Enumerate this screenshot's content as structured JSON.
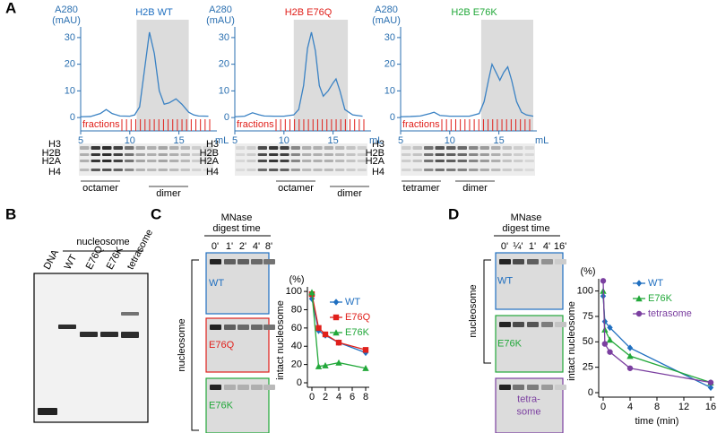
{
  "panel_labels": [
    "A",
    "B",
    "C",
    "D"
  ],
  "chart_data": [
    {
      "type": "line",
      "title": "H2B WT",
      "title_color": "#1f6fc0",
      "axis_color": "#2a6fb0",
      "ylabel": [
        "A280",
        "(mAU)"
      ],
      "xlabel": "mL",
      "fractions_label": "fractions",
      "x": [
        5,
        6,
        7,
        7.6,
        8.2,
        9,
        10,
        10.5,
        11,
        11.5,
        12,
        12.5,
        13,
        13.5,
        14,
        14.7,
        15.3,
        16,
        16.5,
        17,
        18
      ],
      "values": [
        0.3,
        0.4,
        1.5,
        3,
        1.5,
        0.6,
        0.5,
        1,
        4,
        18,
        32,
        24,
        10,
        5,
        5.5,
        7,
        5,
        2,
        1,
        0.6,
        0.5
      ],
      "color": "#3a82c4",
      "xlim": [
        5,
        18.5
      ],
      "ylim": [
        -5,
        34
      ],
      "xticks": [
        5,
        10,
        15
      ],
      "yticks": [
        0,
        10,
        20,
        30
      ],
      "shaded_xrange": [
        10.7,
        16
      ]
    },
    {
      "type": "line",
      "title": "H2B E76Q",
      "title_color": "#e0201b",
      "axis_color": "#2a6fb0",
      "ylabel": [
        "A280",
        "(mAU)"
      ],
      "xlabel": "mL",
      "fractions_label": "fractions",
      "x": [
        5,
        6,
        6.8,
        7.5,
        8,
        9,
        10,
        11,
        11.5,
        12,
        12.4,
        12.8,
        13.2,
        13.6,
        14,
        14.5,
        15,
        15.3,
        15.7,
        16.2,
        17,
        18
      ],
      "values": [
        0.3,
        0.5,
        1.8,
        1,
        0.6,
        0.5,
        0.5,
        1,
        3,
        12,
        26,
        32,
        25,
        12,
        8,
        10,
        13,
        14.5,
        10,
        3,
        1,
        0.5
      ],
      "color": "#3a82c4",
      "xlim": [
        5,
        18.5
      ],
      "ylim": [
        -5,
        34
      ],
      "xticks": [
        5,
        10,
        15
      ],
      "yticks": [
        0,
        10,
        20,
        30
      ],
      "shaded_xrange": [
        11,
        16.5
      ]
    },
    {
      "type": "line",
      "title": "H2B E76K",
      "title_color": "#22a83a",
      "axis_color": "#2a6fb0",
      "ylabel": [
        "A280",
        "(mAU)"
      ],
      "xlabel": "mL",
      "fractions_label": "fractions",
      "x": [
        5,
        6,
        7,
        8,
        8.4,
        9,
        10,
        11,
        12,
        13,
        13.5,
        14,
        14.3,
        14.7,
        15.1,
        15.5,
        15.9,
        16.3,
        16.8,
        17.3,
        17.8,
        18.5
      ],
      "values": [
        0.3,
        0.4,
        0.6,
        1.5,
        2,
        0.8,
        0.5,
        0.5,
        0.5,
        1.5,
        6,
        15,
        20,
        17,
        14,
        17,
        19,
        14,
        6,
        2,
        1,
        0.5
      ],
      "color": "#3a82c4",
      "xlim": [
        5,
        18.5
      ],
      "ylim": [
        -5,
        34
      ],
      "xticks": [
        5,
        10,
        15
      ],
      "yticks": [
        0,
        10,
        20,
        30
      ],
      "shaded_xrange": [
        13.2,
        18.5
      ]
    },
    {
      "type": "line",
      "ylabel": "intact nucleosome",
      "ylabel_unit": "(%)",
      "x": [
        0,
        1,
        2,
        4,
        8
      ],
      "xlim": [
        0,
        8
      ],
      "ylim": [
        0,
        105
      ],
      "xticks": [
        0,
        2,
        4,
        6,
        8
      ],
      "yticks": [
        0,
        20,
        40,
        60,
        80,
        100
      ],
      "legend": "upper right",
      "series": [
        {
          "name": "WT",
          "color": "#1f6fc0",
          "marker": "diamond",
          "values": [
            92,
            57,
            52,
            44,
            33
          ]
        },
        {
          "name": "E76Q",
          "color": "#e0201b",
          "marker": "square",
          "values": [
            97,
            60,
            53,
            44,
            36
          ]
        },
        {
          "name": "E76K",
          "color": "#22a83a",
          "marker": "triangle",
          "values": [
            99,
            18,
            19,
            22,
            16
          ]
        }
      ]
    },
    {
      "type": "line",
      "ylabel": "intact nucleosome",
      "ylabel_unit": "(%)",
      "xlabel": "time (min)",
      "x": [
        0,
        0.25,
        1,
        4,
        16
      ],
      "xlim": [
        0,
        16
      ],
      "ylim": [
        0,
        112
      ],
      "xticks": [
        0,
        4,
        8,
        12,
        16
      ],
      "yticks": [
        0,
        25,
        50,
        75,
        100
      ],
      "legend": "upper right",
      "series": [
        {
          "name": "WT",
          "color": "#1f6fc0",
          "marker": "diamond",
          "values": [
            95,
            70,
            64,
            44,
            5
          ]
        },
        {
          "name": "E76K",
          "color": "#22a83a",
          "marker": "triangle",
          "values": [
            100,
            62,
            52,
            36,
            10
          ]
        },
        {
          "name": "tetrasome",
          "color": "#7b3fa0",
          "marker": "circle",
          "values": [
            110,
            48,
            40,
            24,
            10
          ]
        }
      ]
    }
  ],
  "gels_a": [
    {
      "proteins": [
        "H3",
        "H2B",
        "H2A",
        "H4"
      ],
      "fractions": [
        "octamer",
        "dimer"
      ]
    },
    {
      "proteins": [
        "H3",
        "H2B",
        "H2A",
        "H4"
      ],
      "fractions": [
        "octamer",
        "dimer"
      ]
    },
    {
      "proteins": [
        "H3",
        "H2B",
        "H2A",
        "H4"
      ],
      "fractions": [
        "tetramer",
        "dimer"
      ]
    }
  ],
  "gel_b": {
    "group": "nucleosome",
    "lanes": [
      "DNA",
      "WT",
      "E76Q",
      "E76K",
      "tetrasome"
    ]
  },
  "gel_c": {
    "header": [
      "MNase",
      "digest time"
    ],
    "times": [
      "0'",
      "1'",
      "2'",
      "4'",
      "8'"
    ],
    "group": "nucleosome",
    "rows": [
      {
        "label": [
          "WT"
        ],
        "color": "#1f6fc0"
      },
      {
        "label": [
          "E76Q"
        ],
        "color": "#e0201b"
      },
      {
        "label": [
          "E76K"
        ],
        "color": "#22a83a"
      }
    ]
  },
  "gel_d": {
    "header": [
      "MNase",
      "digest time"
    ],
    "times": [
      "0'",
      "¼'",
      "1'",
      "4'",
      "16'"
    ],
    "group": "nucleosome",
    "rows": [
      {
        "label": [
          "WT"
        ],
        "color": "#1f6fc0"
      },
      {
        "label": [
          "E76K"
        ],
        "color": "#22a83a"
      },
      {
        "label": [
          "tetra-",
          "some"
        ],
        "color": "#7b3fa0"
      }
    ]
  }
}
